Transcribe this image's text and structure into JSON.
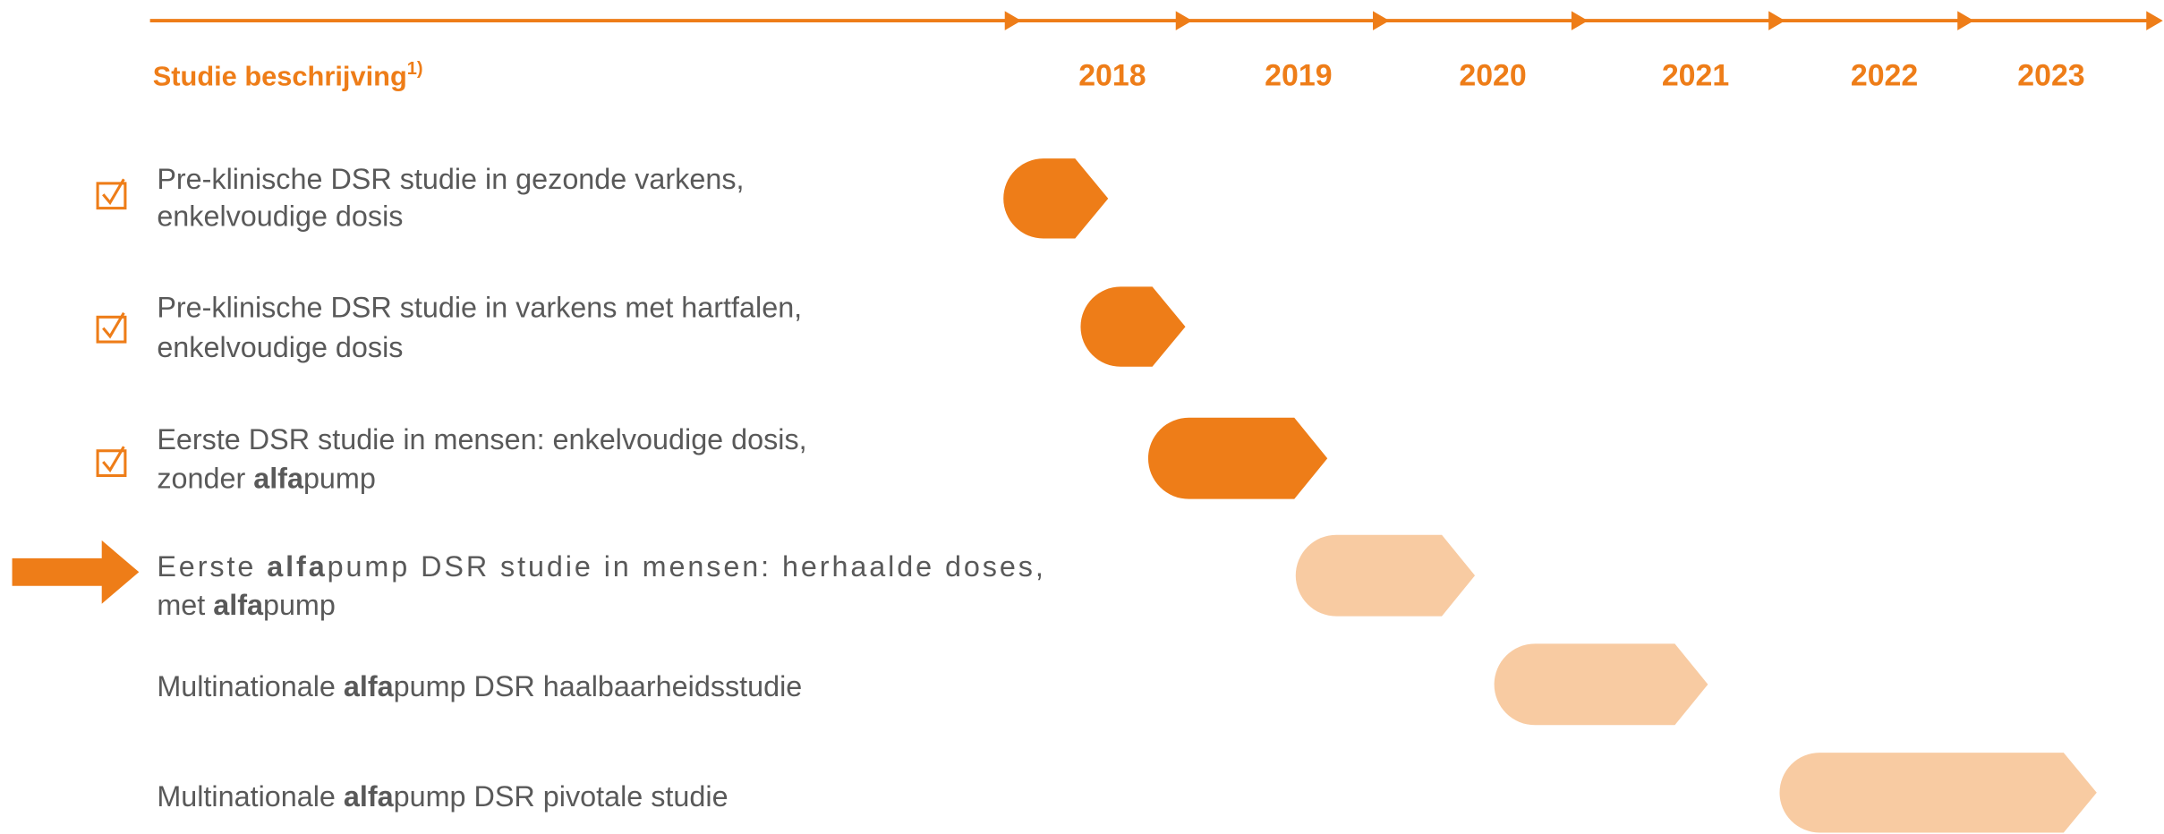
{
  "header": {
    "title": "Studie beschrijving",
    "footnote": "1)"
  },
  "years": [
    "2018",
    "2019",
    "2020",
    "2021",
    "2022",
    "2023"
  ],
  "rows": [
    {
      "lines": [
        [
          {
            "text": "Pre-klinische DSR studie in gezonde varkens,"
          }
        ],
        [
          {
            "text": "enkelvoudige dosis"
          }
        ]
      ]
    },
    {
      "lines": [
        [
          {
            "text": "Pre-klinische DSR studie in varkens met hartfalen,"
          }
        ],
        [
          {
            "text": "enkelvoudige dosis"
          }
        ]
      ]
    },
    {
      "lines": [
        [
          {
            "text": "Eerste DSR studie in mensen: enkelvoudige dosis,"
          }
        ],
        [
          {
            "text": "zonder "
          },
          {
            "text": "alfa",
            "bold": true
          },
          {
            "text": "pump"
          }
        ]
      ]
    },
    {
      "lines": [
        [
          {
            "text": "Eerste "
          },
          {
            "text": "alfa",
            "bold": true
          },
          {
            "text": "pump DSR studie in mensen: herhaalde doses,"
          }
        ],
        [
          {
            "text": "met "
          },
          {
            "text": "alfa",
            "bold": true
          },
          {
            "text": "pump"
          }
        ]
      ]
    },
    {
      "lines": [
        [
          {
            "text": "Multinationale "
          },
          {
            "text": "alfa",
            "bold": true
          },
          {
            "text": "pump DSR haalbaarheidsstudie"
          }
        ]
      ]
    },
    {
      "lines": [
        [
          {
            "text": "Multinationale "
          },
          {
            "text": "alfa",
            "bold": true
          },
          {
            "text": "pump DSR pivotale studie"
          }
        ]
      ]
    }
  ]
}
